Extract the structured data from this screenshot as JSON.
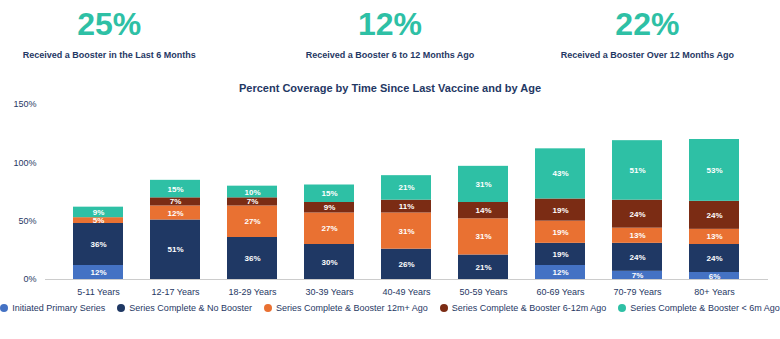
{
  "chart_data": {
    "type": "bar",
    "stacked": true,
    "data_labels": true,
    "title": "Percent Coverage by Time Since Last Vaccine and by Age",
    "annotations": [
      {
        "text": "25%",
        "subtext": "Received a Booster in the Last 6 Months"
      },
      {
        "text": "12%",
        "subtext": "Received a Booster 6 to 12 Months Ago"
      },
      {
        "text": "22%",
        "subtext": "Received a Booster Over 12 Months Ago"
      }
    ],
    "categories": [
      "5-11 Years",
      "12-17 Years",
      "18-29 Years",
      "30-39 Years",
      "40-49 Years",
      "50-59 Years",
      "60-69 Years",
      "70-79 Years",
      "80+ Years"
    ],
    "series": [
      {
        "name": "Initiated Primary Series",
        "color": "#4472C4",
        "values": [
          12,
          0,
          0,
          0,
          0,
          0,
          12,
          7,
          6
        ],
        "value_labels": [
          "12%",
          null,
          null,
          null,
          null,
          null,
          "12%",
          "7%",
          "6%"
        ]
      },
      {
        "name": "Series Complete & No Booster",
        "color": "#1F3864",
        "values": [
          36,
          51,
          36,
          30,
          26,
          21,
          19,
          24,
          24
        ],
        "value_labels": [
          "36%",
          "51%",
          "36%",
          "30%",
          "26%",
          "21%",
          "19%",
          "24%",
          "24%"
        ]
      },
      {
        "name": "Series Complete & Booster 12m+ Ago",
        "color": "#E97132",
        "values": [
          5,
          12,
          27,
          27,
          31,
          31,
          19,
          13,
          13
        ],
        "value_labels": [
          "5%",
          "12%",
          "27%",
          "27%",
          "31%",
          "31%",
          "19%",
          "13%",
          "13%"
        ]
      },
      {
        "name": "Series Complete & Booster 6-12m Ago",
        "color": "#7B2C14",
        "values": [
          0,
          7,
          7,
          9,
          11,
          14,
          19,
          24,
          24
        ],
        "value_labels": [
          null,
          "7%",
          "7%",
          "9%",
          "11%",
          "14%",
          "19%",
          "24%",
          "24%"
        ]
      },
      {
        "name": "Series Complete & Booster < 6m Ago",
        "color": "#2EC0A5",
        "values": [
          9,
          15,
          10,
          15,
          21,
          31,
          43,
          51,
          53
        ],
        "value_labels": [
          "9%",
          "15%",
          "10%",
          "15%",
          "21%",
          "31%",
          "43%",
          "51%",
          "53%"
        ]
      }
    ],
    "ylim": [
      0,
      150
    ],
    "yticks": [
      {
        "value": 0,
        "label": "0%"
      },
      {
        "value": 50,
        "label": "50%"
      },
      {
        "value": 100,
        "label": "100%"
      },
      {
        "value": 150,
        "label": "150%"
      }
    ],
    "grid": false,
    "legend": "bottom"
  }
}
